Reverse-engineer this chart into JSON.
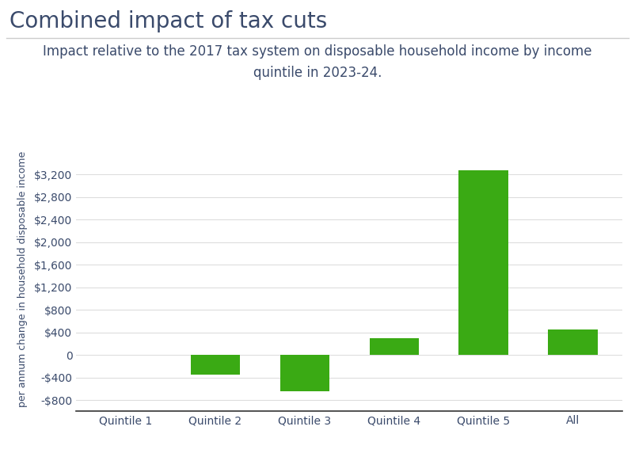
{
  "title": "Combined impact of tax cuts",
  "subtitle": "Impact relative to the 2017 tax system on disposable household income by income\nquintile in 2023-24.",
  "categories": [
    "Quintile 1",
    "Quintile 2",
    "Quintile 3",
    "Quintile 4",
    "Quintile 5",
    "All"
  ],
  "values": [
    0,
    -350,
    -650,
    300,
    3270,
    450
  ],
  "bar_color": "#3aaa14",
  "ylabel": "per annum change in household disposable income",
  "ylim": [
    -1000,
    3700
  ],
  "yticks": [
    -800,
    -400,
    0,
    400,
    800,
    1200,
    1600,
    2000,
    2400,
    2800,
    3200
  ],
  "background_color": "#ffffff",
  "title_color": "#3a4a6b",
  "subtitle_color": "#3a4a6b",
  "axis_label_color": "#3a4a6b",
  "tick_label_color": "#3a4a6b",
  "grid_color": "#dddddd",
  "title_fontsize": 20,
  "subtitle_fontsize": 12,
  "ylabel_fontsize": 9,
  "tick_fontsize": 10,
  "bar_width": 0.55
}
